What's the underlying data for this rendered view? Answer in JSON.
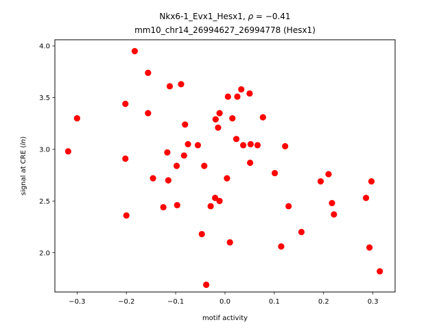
{
  "chart_data": {
    "type": "scatter",
    "title_line1": "Nkx6-1_Evx1_Hesx1, ",
    "title_rho": "ρ",
    "title_rho_value": " = −0.41",
    "title_line2": "mm10_chr14_26994627_26994778 (Hesx1)",
    "xlabel": "motif activity",
    "ylabel_main": "signal at CRE (",
    "ylabel_italic": "ln",
    "ylabel_close": ")",
    "xlim": [
      -0.345,
      0.345
    ],
    "ylim": [
      1.62,
      4.06
    ],
    "xticks": [
      -0.3,
      -0.2,
      -0.1,
      0.0,
      0.1,
      0.2,
      0.3
    ],
    "xtick_labels": [
      "−0.3",
      "−0.2",
      "−0.1",
      "0.0",
      "0.1",
      "0.2",
      "0.3"
    ],
    "yticks": [
      2.0,
      2.5,
      3.0,
      3.5,
      4.0
    ],
    "ytick_labels": [
      "2.0",
      "2.5",
      "3.0",
      "3.5",
      "4.0"
    ],
    "marker_color": "#ff0000",
    "grid": false,
    "points": [
      {
        "x": -0.318,
        "y": 2.98
      },
      {
        "x": -0.3,
        "y": 3.3
      },
      {
        "x": -0.183,
        "y": 3.95
      },
      {
        "x": -0.202,
        "y": 3.44
      },
      {
        "x": -0.202,
        "y": 2.91
      },
      {
        "x": -0.2,
        "y": 2.36
      },
      {
        "x": -0.156,
        "y": 3.74
      },
      {
        "x": -0.156,
        "y": 3.35
      },
      {
        "x": -0.146,
        "y": 2.72
      },
      {
        "x": -0.125,
        "y": 2.44
      },
      {
        "x": -0.117,
        "y": 2.97
      },
      {
        "x": -0.115,
        "y": 2.7
      },
      {
        "x": -0.112,
        "y": 3.61
      },
      {
        "x": -0.098,
        "y": 2.84
      },
      {
        "x": -0.097,
        "y": 2.46
      },
      {
        "x": -0.089,
        "y": 3.63
      },
      {
        "x": -0.083,
        "y": 2.94
      },
      {
        "x": -0.081,
        "y": 3.24
      },
      {
        "x": -0.075,
        "y": 3.05
      },
      {
        "x": -0.055,
        "y": 3.04
      },
      {
        "x": -0.047,
        "y": 2.18
      },
      {
        "x": -0.042,
        "y": 2.84
      },
      {
        "x": -0.038,
        "y": 1.69
      },
      {
        "x": -0.029,
        "y": 2.45
      },
      {
        "x": -0.02,
        "y": 2.53
      },
      {
        "x": -0.019,
        "y": 3.29
      },
      {
        "x": -0.014,
        "y": 3.21
      },
      {
        "x": -0.011,
        "y": 3.35
      },
      {
        "x": -0.011,
        "y": 2.5
      },
      {
        "x": 0.004,
        "y": 2.72
      },
      {
        "x": 0.006,
        "y": 3.51
      },
      {
        "x": 0.01,
        "y": 2.1
      },
      {
        "x": 0.015,
        "y": 3.3
      },
      {
        "x": 0.023,
        "y": 3.1
      },
      {
        "x": 0.025,
        "y": 3.51
      },
      {
        "x": 0.033,
        "y": 3.58
      },
      {
        "x": 0.037,
        "y": 3.04
      },
      {
        "x": 0.05,
        "y": 3.54
      },
      {
        "x": 0.051,
        "y": 2.87
      },
      {
        "x": 0.052,
        "y": 3.05
      },
      {
        "x": 0.066,
        "y": 3.04
      },
      {
        "x": 0.077,
        "y": 3.31
      },
      {
        "x": 0.101,
        "y": 2.77
      },
      {
        "x": 0.114,
        "y": 2.06
      },
      {
        "x": 0.122,
        "y": 3.03
      },
      {
        "x": 0.129,
        "y": 2.45
      },
      {
        "x": 0.155,
        "y": 2.2
      },
      {
        "x": 0.194,
        "y": 2.69
      },
      {
        "x": 0.21,
        "y": 2.76
      },
      {
        "x": 0.217,
        "y": 2.48
      },
      {
        "x": 0.221,
        "y": 2.37
      },
      {
        "x": 0.286,
        "y": 2.53
      },
      {
        "x": 0.293,
        "y": 2.05
      },
      {
        "x": 0.297,
        "y": 2.69
      },
      {
        "x": 0.314,
        "y": 1.82
      }
    ]
  }
}
